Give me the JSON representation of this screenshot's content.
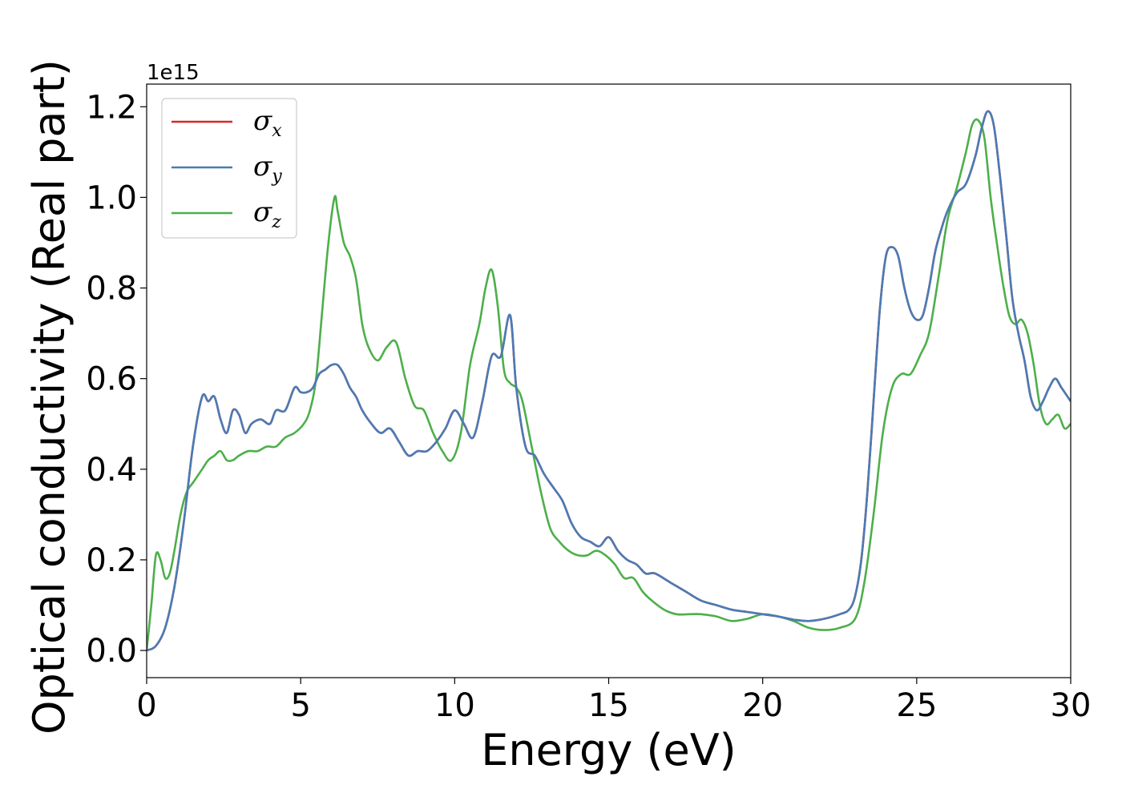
{
  "chart_data": {
    "type": "line",
    "xlabel": "Energy (eV)",
    "ylabel": "Optical conductivity (Real part)",
    "y_offset_label": "1e15",
    "xlim": [
      0,
      30
    ],
    "ylim": [
      -0.06,
      1.25
    ],
    "x_ticks": [
      0,
      5,
      10,
      15,
      20,
      25,
      30
    ],
    "x_tick_labels": [
      "0",
      "5",
      "10",
      "15",
      "20",
      "25",
      "30"
    ],
    "y_ticks": [
      0.0,
      0.2,
      0.4,
      0.6,
      0.8,
      1.0,
      1.2
    ],
    "y_tick_labels": [
      "0.0",
      "0.2",
      "0.4",
      "0.6",
      "0.8",
      "1.0",
      "1.2"
    ],
    "grid": false,
    "legend_position": "top-left",
    "series": [
      {
        "name": "σx",
        "legend_symbol": "σ",
        "legend_sub": "x",
        "color": "#d62728",
        "x": [
          0,
          0.3,
          0.6,
          0.9,
          1.2,
          1.5,
          1.8,
          2.0,
          2.2,
          2.4,
          2.6,
          2.8,
          3.0,
          3.2,
          3.4,
          3.7,
          4.0,
          4.2,
          4.5,
          4.8,
          5.0,
          5.2,
          5.4,
          5.6,
          5.8,
          6.0,
          6.2,
          6.4,
          6.6,
          6.8,
          7.0,
          7.3,
          7.6,
          7.9,
          8.2,
          8.5,
          8.8,
          9.1,
          9.4,
          9.7,
          10.0,
          10.3,
          10.6,
          10.9,
          11.2,
          11.5,
          11.8,
          12.0,
          12.3,
          12.6,
          12.9,
          13.2,
          13.5,
          13.8,
          14.1,
          14.4,
          14.7,
          15.0,
          15.3,
          15.6,
          15.9,
          16.2,
          16.5,
          17.0,
          17.5,
          18.0,
          18.5,
          19.0,
          19.5,
          20.0,
          20.5,
          21.0,
          21.5,
          22.0,
          22.5,
          22.8,
          23.0,
          23.2,
          23.4,
          23.6,
          23.8,
          24.0,
          24.2,
          24.4,
          24.6,
          24.8,
          25.0,
          25.2,
          25.4,
          25.6,
          25.8,
          26.0,
          26.3,
          26.6,
          26.9,
          27.1,
          27.3,
          27.5,
          27.7,
          27.9,
          28.1,
          28.3,
          28.5,
          28.7,
          28.9,
          29.1,
          29.3,
          29.5,
          29.7,
          30.0
        ],
        "y": [
          0.0,
          0.01,
          0.05,
          0.14,
          0.28,
          0.45,
          0.56,
          0.55,
          0.56,
          0.51,
          0.48,
          0.53,
          0.52,
          0.48,
          0.5,
          0.51,
          0.5,
          0.53,
          0.53,
          0.58,
          0.57,
          0.57,
          0.58,
          0.61,
          0.62,
          0.63,
          0.63,
          0.61,
          0.58,
          0.56,
          0.53,
          0.5,
          0.48,
          0.49,
          0.46,
          0.43,
          0.44,
          0.44,
          0.46,
          0.49,
          0.53,
          0.5,
          0.47,
          0.55,
          0.65,
          0.65,
          0.74,
          0.58,
          0.45,
          0.43,
          0.39,
          0.36,
          0.33,
          0.28,
          0.25,
          0.24,
          0.23,
          0.25,
          0.22,
          0.2,
          0.19,
          0.17,
          0.17,
          0.15,
          0.13,
          0.11,
          0.1,
          0.09,
          0.085,
          0.08,
          0.075,
          0.068,
          0.065,
          0.07,
          0.08,
          0.09,
          0.12,
          0.2,
          0.35,
          0.55,
          0.75,
          0.87,
          0.89,
          0.87,
          0.8,
          0.75,
          0.73,
          0.74,
          0.8,
          0.88,
          0.93,
          0.97,
          1.01,
          1.03,
          1.09,
          1.15,
          1.19,
          1.16,
          1.05,
          0.92,
          0.78,
          0.7,
          0.64,
          0.56,
          0.53,
          0.55,
          0.58,
          0.6,
          0.58,
          0.55
        ]
      },
      {
        "name": "σy",
        "legend_symbol": "σ",
        "legend_sub": "y",
        "color": "#4a7bb5",
        "x": [
          0,
          0.3,
          0.6,
          0.9,
          1.2,
          1.5,
          1.8,
          2.0,
          2.2,
          2.4,
          2.6,
          2.8,
          3.0,
          3.2,
          3.4,
          3.7,
          4.0,
          4.2,
          4.5,
          4.8,
          5.0,
          5.2,
          5.4,
          5.6,
          5.8,
          6.0,
          6.2,
          6.4,
          6.6,
          6.8,
          7.0,
          7.3,
          7.6,
          7.9,
          8.2,
          8.5,
          8.8,
          9.1,
          9.4,
          9.7,
          10.0,
          10.3,
          10.6,
          10.9,
          11.2,
          11.5,
          11.8,
          12.0,
          12.3,
          12.6,
          12.9,
          13.2,
          13.5,
          13.8,
          14.1,
          14.4,
          14.7,
          15.0,
          15.3,
          15.6,
          15.9,
          16.2,
          16.5,
          17.0,
          17.5,
          18.0,
          18.5,
          19.0,
          19.5,
          20.0,
          20.5,
          21.0,
          21.5,
          22.0,
          22.5,
          22.8,
          23.0,
          23.2,
          23.4,
          23.6,
          23.8,
          24.0,
          24.2,
          24.4,
          24.6,
          24.8,
          25.0,
          25.2,
          25.4,
          25.6,
          25.8,
          26.0,
          26.3,
          26.6,
          26.9,
          27.1,
          27.3,
          27.5,
          27.7,
          27.9,
          28.1,
          28.3,
          28.5,
          28.7,
          28.9,
          29.1,
          29.3,
          29.5,
          29.7,
          30.0
        ],
        "y": [
          0.0,
          0.01,
          0.05,
          0.14,
          0.28,
          0.45,
          0.56,
          0.55,
          0.56,
          0.51,
          0.48,
          0.53,
          0.52,
          0.48,
          0.5,
          0.51,
          0.5,
          0.53,
          0.53,
          0.58,
          0.57,
          0.57,
          0.58,
          0.61,
          0.62,
          0.63,
          0.63,
          0.61,
          0.58,
          0.56,
          0.53,
          0.5,
          0.48,
          0.49,
          0.46,
          0.43,
          0.44,
          0.44,
          0.46,
          0.49,
          0.53,
          0.5,
          0.47,
          0.55,
          0.65,
          0.65,
          0.74,
          0.58,
          0.45,
          0.43,
          0.39,
          0.36,
          0.33,
          0.28,
          0.25,
          0.24,
          0.23,
          0.25,
          0.22,
          0.2,
          0.19,
          0.17,
          0.17,
          0.15,
          0.13,
          0.11,
          0.1,
          0.09,
          0.085,
          0.08,
          0.075,
          0.068,
          0.065,
          0.07,
          0.08,
          0.09,
          0.12,
          0.2,
          0.35,
          0.55,
          0.75,
          0.87,
          0.89,
          0.87,
          0.8,
          0.75,
          0.73,
          0.74,
          0.8,
          0.88,
          0.93,
          0.97,
          1.01,
          1.03,
          1.09,
          1.15,
          1.19,
          1.16,
          1.05,
          0.92,
          0.78,
          0.7,
          0.64,
          0.56,
          0.53,
          0.55,
          0.58,
          0.6,
          0.58,
          0.55
        ]
      },
      {
        "name": "σz",
        "legend_symbol": "σ",
        "legend_sub": "z",
        "color": "#4daf4a",
        "x": [
          0,
          0.15,
          0.3,
          0.45,
          0.6,
          0.75,
          0.9,
          1.1,
          1.3,
          1.5,
          1.8,
          2.0,
          2.2,
          2.4,
          2.6,
          2.8,
          3.0,
          3.3,
          3.6,
          3.9,
          4.2,
          4.5,
          4.8,
          5.1,
          5.3,
          5.5,
          5.7,
          5.9,
          6.1,
          6.2,
          6.4,
          6.6,
          6.8,
          7.0,
          7.2,
          7.5,
          7.8,
          8.1,
          8.4,
          8.7,
          9.0,
          9.3,
          9.6,
          9.9,
          10.2,
          10.5,
          10.8,
          11.0,
          11.2,
          11.4,
          11.6,
          11.8,
          12.0,
          12.2,
          12.5,
          12.8,
          13.1,
          13.4,
          13.7,
          14.0,
          14.3,
          14.6,
          14.9,
          15.2,
          15.5,
          15.8,
          16.1,
          16.4,
          16.8,
          17.2,
          17.6,
          18.0,
          18.5,
          19.0,
          19.5,
          20.0,
          20.5,
          21.0,
          21.5,
          22.0,
          22.5,
          23.0,
          23.3,
          23.6,
          23.9,
          24.2,
          24.5,
          24.8,
          25.1,
          25.4,
          25.7,
          26.0,
          26.3,
          26.6,
          26.8,
          27.0,
          27.2,
          27.4,
          27.6,
          27.8,
          28.0,
          28.2,
          28.4,
          28.6,
          28.8,
          29.0,
          29.2,
          29.4,
          29.6,
          29.8,
          30.0
        ],
        "y": [
          0.0,
          0.1,
          0.21,
          0.2,
          0.16,
          0.17,
          0.22,
          0.3,
          0.35,
          0.37,
          0.4,
          0.42,
          0.43,
          0.44,
          0.42,
          0.42,
          0.43,
          0.44,
          0.44,
          0.45,
          0.45,
          0.47,
          0.48,
          0.5,
          0.53,
          0.6,
          0.75,
          0.9,
          1.0,
          0.97,
          0.9,
          0.87,
          0.82,
          0.72,
          0.67,
          0.64,
          0.67,
          0.68,
          0.6,
          0.54,
          0.53,
          0.48,
          0.44,
          0.42,
          0.48,
          0.63,
          0.72,
          0.8,
          0.84,
          0.76,
          0.62,
          0.59,
          0.58,
          0.55,
          0.45,
          0.35,
          0.27,
          0.24,
          0.22,
          0.21,
          0.21,
          0.22,
          0.21,
          0.19,
          0.16,
          0.16,
          0.13,
          0.11,
          0.09,
          0.08,
          0.08,
          0.08,
          0.075,
          0.065,
          0.07,
          0.08,
          0.075,
          0.065,
          0.05,
          0.045,
          0.05,
          0.07,
          0.15,
          0.3,
          0.48,
          0.58,
          0.61,
          0.61,
          0.65,
          0.7,
          0.82,
          0.95,
          1.02,
          1.1,
          1.16,
          1.17,
          1.13,
          1.0,
          0.9,
          0.81,
          0.74,
          0.72,
          0.73,
          0.7,
          0.63,
          0.54,
          0.5,
          0.51,
          0.52,
          0.49,
          0.5
        ]
      }
    ]
  }
}
